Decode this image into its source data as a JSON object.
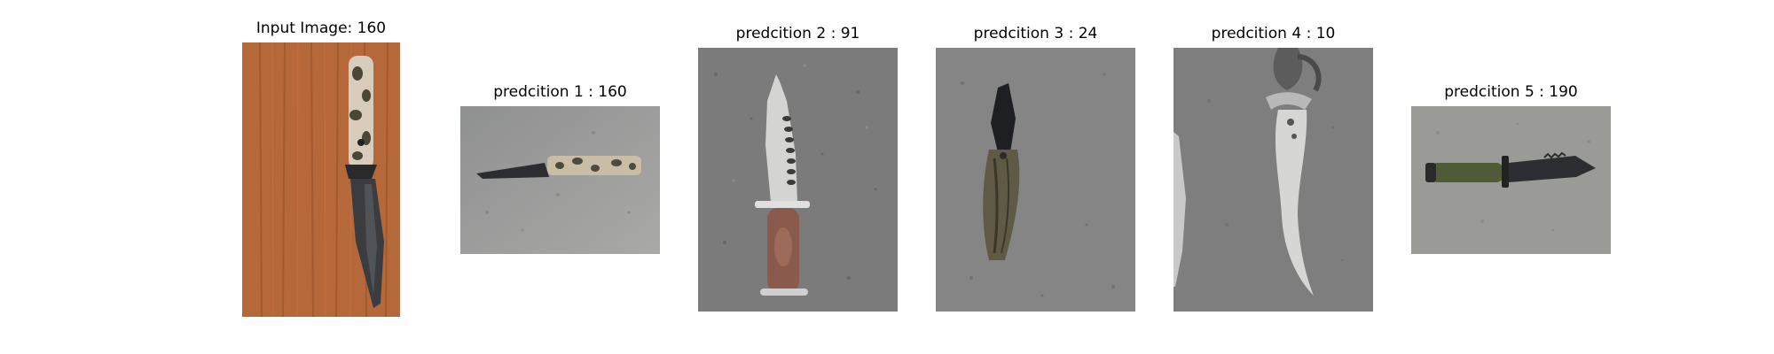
{
  "figure": {
    "panels": [
      {
        "title": "Input Image: 160"
      },
      {
        "title": "predcition 1 : 160"
      },
      {
        "title": "predcition 2 : 91"
      },
      {
        "title": "predcition 3 : 24"
      },
      {
        "title": "predcition 4 : 10"
      },
      {
        "title": "predcition 5 : 190"
      }
    ]
  }
}
